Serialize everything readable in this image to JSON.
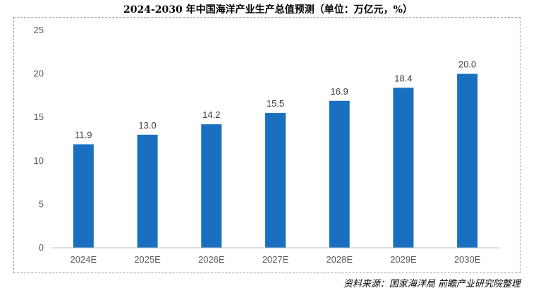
{
  "chart_data": {
    "type": "bar",
    "title": "2024-2030 年中国海洋产业生产总值预测（单位：万亿元，%）",
    "categories": [
      "2024E",
      "2025E",
      "2026E",
      "2027E",
      "2028E",
      "2029E",
      "2030E"
    ],
    "values": [
      11.9,
      13.0,
      14.2,
      15.5,
      16.9,
      18.4,
      20.0
    ],
    "value_labels": [
      "11.9",
      "13.0",
      "14.2",
      "15.5",
      "16.9",
      "18.4",
      "20.0"
    ],
    "ylim": [
      0,
      25
    ],
    "yticks": [
      "0",
      "5",
      "10",
      "15",
      "20",
      "25"
    ],
    "ytick_values": [
      0,
      5,
      10,
      15,
      20,
      25
    ],
    "grid": false,
    "bar_color": "#1b6fc1",
    "source": "资料来源：国家海洋局 前瞻产业研究院整理"
  }
}
